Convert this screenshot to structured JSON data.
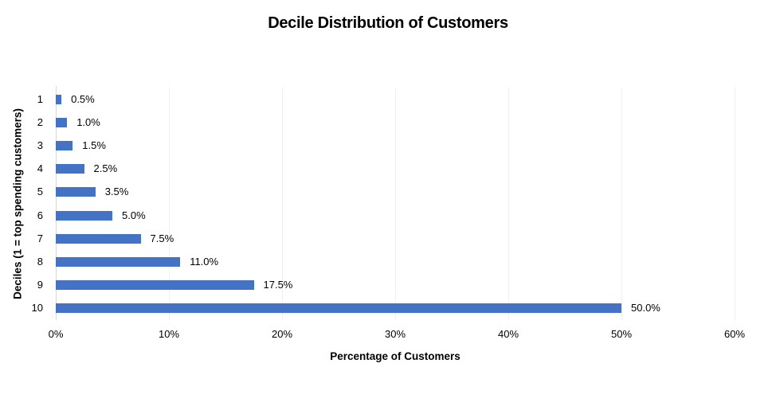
{
  "title": "Decile Distribution of Customers",
  "chart_data": {
    "type": "bar",
    "orientation": "horizontal",
    "title": "Decile Distribution of Customers",
    "xlabel": "Percentage of Customers",
    "ylabel": "Deciles (1 = top spending customers)",
    "categories": [
      "1",
      "2",
      "3",
      "4",
      "5",
      "6",
      "7",
      "8",
      "9",
      "10"
    ],
    "values": [
      0.5,
      1.0,
      1.5,
      2.5,
      3.5,
      5.0,
      7.5,
      11.0,
      17.5,
      50.0
    ],
    "value_labels": [
      "0.5%",
      "1.0%",
      "1.5%",
      "2.5%",
      "3.5%",
      "5.0%",
      "7.5%",
      "11.0%",
      "17.5%",
      "50.0%"
    ],
    "xlim": [
      0,
      60
    ],
    "x_tick_values": [
      0,
      10,
      20,
      30,
      40,
      50,
      60
    ],
    "x_tick_labels": [
      "0%",
      "10%",
      "20%",
      "30%",
      "40%",
      "50%",
      "60%"
    ],
    "grid": true,
    "legend": "none",
    "bar_color": "#4472C4",
    "gridline_color": "#f1f1f1",
    "axis_line_color": "#d9d9d9",
    "text_color": "#000000"
  }
}
